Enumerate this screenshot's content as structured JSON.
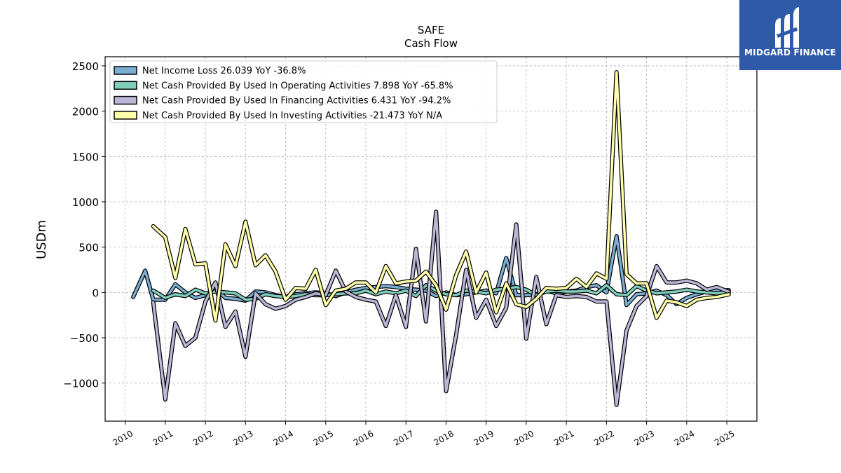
{
  "chart_data": {
    "type": "line",
    "title": "SAFE",
    "subtitle": "Cash Flow",
    "ylabel": "USDm",
    "xlabel": "",
    "xlim": [
      2009.5,
      2025.75
    ],
    "ylim": [
      -1420,
      2600
    ],
    "yticks": [
      -1000,
      -500,
      0,
      500,
      1000,
      1500,
      2000,
      2500
    ],
    "ytick_labels": [
      "−1000",
      "−500",
      "0",
      "500",
      "1000",
      "1500",
      "2000",
      "2500"
    ],
    "xticks": [
      2010,
      2011,
      2012,
      2013,
      2014,
      2015,
      2016,
      2017,
      2018,
      2019,
      2020,
      2021,
      2022,
      2023,
      2024,
      2025
    ],
    "xtick_labels": [
      "2010",
      "2011",
      "2012",
      "2013",
      "2014",
      "2015",
      "2016",
      "2017",
      "2018",
      "2019",
      "2020",
      "2021",
      "2022",
      "2023",
      "2024",
      "2025"
    ],
    "grid": true,
    "legend_position": "top-left",
    "series": [
      {
        "name": "Net Income Loss  26.039 YoY -36.8%",
        "color": "#7aadd2",
        "points": [
          [
            2010.2,
            -50
          ],
          [
            2010.5,
            240
          ],
          [
            2010.7,
            -80
          ],
          [
            2011.0,
            -80
          ],
          [
            2011.25,
            90
          ],
          [
            2011.5,
            0
          ],
          [
            2011.75,
            -60
          ],
          [
            2012.0,
            -30
          ],
          [
            2012.25,
            40
          ],
          [
            2012.5,
            -60
          ],
          [
            2012.75,
            -70
          ],
          [
            2013.0,
            -90
          ],
          [
            2013.25,
            10
          ],
          [
            2013.5,
            0
          ],
          [
            2013.75,
            -30
          ],
          [
            2014.0,
            -50
          ],
          [
            2014.25,
            -20
          ],
          [
            2014.5,
            -10
          ],
          [
            2014.75,
            0
          ],
          [
            2015.0,
            -10
          ],
          [
            2015.25,
            -40
          ],
          [
            2015.5,
            0
          ],
          [
            2015.75,
            30
          ],
          [
            2016.0,
            50
          ],
          [
            2016.25,
            60
          ],
          [
            2016.5,
            70
          ],
          [
            2016.75,
            60
          ],
          [
            2017.0,
            40
          ],
          [
            2017.25,
            30
          ],
          [
            2017.5,
            20
          ],
          [
            2017.75,
            -40
          ],
          [
            2018.0,
            0
          ],
          [
            2018.25,
            -30
          ],
          [
            2018.5,
            -20
          ],
          [
            2018.75,
            0
          ],
          [
            2019.0,
            20
          ],
          [
            2019.25,
            -10
          ],
          [
            2019.5,
            380
          ],
          [
            2019.75,
            -30
          ],
          [
            2020.0,
            -30
          ],
          [
            2020.25,
            -20
          ],
          [
            2020.5,
            20
          ],
          [
            2020.75,
            -10
          ],
          [
            2021.0,
            10
          ],
          [
            2021.25,
            20
          ],
          [
            2021.5,
            60
          ],
          [
            2021.75,
            80
          ],
          [
            2022.0,
            0
          ],
          [
            2022.25,
            620
          ],
          [
            2022.5,
            -140
          ],
          [
            2022.75,
            -20
          ],
          [
            2023.0,
            -10
          ],
          [
            2023.25,
            20
          ],
          [
            2023.5,
            -30
          ],
          [
            2023.75,
            -130
          ],
          [
            2024.0,
            -60
          ],
          [
            2024.25,
            -20
          ],
          [
            2024.5,
            10
          ],
          [
            2024.75,
            20
          ],
          [
            2025.05,
            26
          ]
        ]
      },
      {
        "name": "Net Cash Provided By Used In Operating Activities  7.898 YoY -65.8%",
        "color": "#7fcdbb",
        "points": [
          [
            2010.7,
            20
          ],
          [
            2011.0,
            -60
          ],
          [
            2011.25,
            -20
          ],
          [
            2011.5,
            -40
          ],
          [
            2011.75,
            30
          ],
          [
            2012.0,
            -10
          ],
          [
            2012.25,
            10
          ],
          [
            2012.5,
            0
          ],
          [
            2012.75,
            -10
          ],
          [
            2013.0,
            -80
          ],
          [
            2013.25,
            -70
          ],
          [
            2013.5,
            -20
          ],
          [
            2013.75,
            -40
          ],
          [
            2014.0,
            -50
          ],
          [
            2014.25,
            -40
          ],
          [
            2014.5,
            -20
          ],
          [
            2014.75,
            -30
          ],
          [
            2015.0,
            -30
          ],
          [
            2015.25,
            -20
          ],
          [
            2015.5,
            -10
          ],
          [
            2015.75,
            -10
          ],
          [
            2016.0,
            20
          ],
          [
            2016.25,
            -20
          ],
          [
            2016.5,
            10
          ],
          [
            2016.75,
            -10
          ],
          [
            2017.0,
            20
          ],
          [
            2017.25,
            -40
          ],
          [
            2017.5,
            80
          ],
          [
            2017.75,
            20
          ],
          [
            2018.0,
            -20
          ],
          [
            2018.25,
            -30
          ],
          [
            2018.5,
            20
          ],
          [
            2018.75,
            10
          ],
          [
            2019.0,
            -10
          ],
          [
            2019.25,
            30
          ],
          [
            2019.5,
            40
          ],
          [
            2019.75,
            60
          ],
          [
            2020.0,
            30
          ],
          [
            2020.25,
            -30
          ],
          [
            2020.5,
            10
          ],
          [
            2020.75,
            20
          ],
          [
            2021.0,
            10
          ],
          [
            2021.25,
            10
          ],
          [
            2021.5,
            20
          ],
          [
            2021.75,
            -10
          ],
          [
            2022.0,
            80
          ],
          [
            2022.25,
            -20
          ],
          [
            2022.5,
            -30
          ],
          [
            2022.75,
            70
          ],
          [
            2023.0,
            20
          ],
          [
            2023.25,
            -10
          ],
          [
            2023.5,
            0
          ],
          [
            2023.75,
            10
          ],
          [
            2024.0,
            30
          ],
          [
            2024.25,
            10
          ],
          [
            2024.5,
            0
          ],
          [
            2024.75,
            -10
          ],
          [
            2025.05,
            8
          ]
        ]
      },
      {
        "name": "Net Cash Provided By Used In Financing Activities  6.431 YoY -94.2%",
        "color": "#bcb6d8",
        "points": [
          [
            2010.7,
            -110
          ],
          [
            2011.0,
            -1180
          ],
          [
            2011.25,
            -340
          ],
          [
            2011.5,
            -590
          ],
          [
            2011.75,
            -500
          ],
          [
            2012.0,
            -100
          ],
          [
            2012.25,
            110
          ],
          [
            2012.5,
            -380
          ],
          [
            2012.75,
            -210
          ],
          [
            2013.0,
            -710
          ],
          [
            2013.25,
            -10
          ],
          [
            2013.5,
            -130
          ],
          [
            2013.75,
            -180
          ],
          [
            2014.0,
            -150
          ],
          [
            2014.25,
            -80
          ],
          [
            2014.5,
            -50
          ],
          [
            2014.75,
            -10
          ],
          [
            2015.0,
            -30
          ],
          [
            2015.25,
            240
          ],
          [
            2015.5,
            10
          ],
          [
            2015.75,
            -50
          ],
          [
            2016.0,
            -80
          ],
          [
            2016.25,
            -100
          ],
          [
            2016.5,
            -370
          ],
          [
            2016.75,
            -30
          ],
          [
            2017.0,
            -380
          ],
          [
            2017.25,
            480
          ],
          [
            2017.5,
            -320
          ],
          [
            2017.75,
            890
          ],
          [
            2018.0,
            -1090
          ],
          [
            2018.25,
            -470
          ],
          [
            2018.5,
            250
          ],
          [
            2018.75,
            -280
          ],
          [
            2019.0,
            -80
          ],
          [
            2019.25,
            -370
          ],
          [
            2019.5,
            -170
          ],
          [
            2019.75,
            750
          ],
          [
            2020.0,
            -510
          ],
          [
            2020.25,
            170
          ],
          [
            2020.5,
            -350
          ],
          [
            2020.75,
            -30
          ],
          [
            2021.0,
            -50
          ],
          [
            2021.25,
            -40
          ],
          [
            2021.5,
            -50
          ],
          [
            2021.75,
            -100
          ],
          [
            2022.0,
            -100
          ],
          [
            2022.25,
            -1240
          ],
          [
            2022.5,
            -420
          ],
          [
            2022.75,
            -150
          ],
          [
            2023.0,
            -40
          ],
          [
            2023.25,
            290
          ],
          [
            2023.5,
            110
          ],
          [
            2023.75,
            110
          ],
          [
            2024.0,
            130
          ],
          [
            2024.25,
            100
          ],
          [
            2024.5,
            30
          ],
          [
            2024.75,
            60
          ],
          [
            2025.05,
            6
          ]
        ]
      },
      {
        "name": "Net Cash Provided By Used In Investing Activities  -21.473 YoY N/A",
        "color": "#ffffaa",
        "points": [
          [
            2010.7,
            730
          ],
          [
            2011.0,
            610
          ],
          [
            2011.25,
            160
          ],
          [
            2011.5,
            700
          ],
          [
            2011.75,
            310
          ],
          [
            2012.0,
            320
          ],
          [
            2012.25,
            -310
          ],
          [
            2012.5,
            530
          ],
          [
            2012.75,
            290
          ],
          [
            2013.0,
            780
          ],
          [
            2013.25,
            300
          ],
          [
            2013.5,
            410
          ],
          [
            2013.75,
            230
          ],
          [
            2014.0,
            -80
          ],
          [
            2014.25,
            50
          ],
          [
            2014.5,
            40
          ],
          [
            2014.75,
            250
          ],
          [
            2015.0,
            -140
          ],
          [
            2015.25,
            20
          ],
          [
            2015.5,
            40
          ],
          [
            2015.75,
            110
          ],
          [
            2016.0,
            110
          ],
          [
            2016.25,
            0
          ],
          [
            2016.5,
            290
          ],
          [
            2016.75,
            100
          ],
          [
            2017.0,
            120
          ],
          [
            2017.25,
            130
          ],
          [
            2017.5,
            230
          ],
          [
            2017.75,
            80
          ],
          [
            2018.0,
            -190
          ],
          [
            2018.25,
            190
          ],
          [
            2018.5,
            450
          ],
          [
            2018.75,
            0
          ],
          [
            2019.0,
            220
          ],
          [
            2019.25,
            -220
          ],
          [
            2019.5,
            100
          ],
          [
            2019.75,
            -130
          ],
          [
            2020.0,
            -160
          ],
          [
            2020.25,
            -70
          ],
          [
            2020.5,
            50
          ],
          [
            2020.75,
            40
          ],
          [
            2021.0,
            50
          ],
          [
            2021.25,
            150
          ],
          [
            2021.5,
            60
          ],
          [
            2021.75,
            210
          ],
          [
            2022.0,
            150
          ],
          [
            2022.25,
            2430
          ],
          [
            2022.5,
            200
          ],
          [
            2022.75,
            100
          ],
          [
            2023.0,
            100
          ],
          [
            2023.25,
            -280
          ],
          [
            2023.5,
            -90
          ],
          [
            2023.75,
            -110
          ],
          [
            2024.0,
            -150
          ],
          [
            2024.25,
            -80
          ],
          [
            2024.5,
            -60
          ],
          [
            2024.75,
            -50
          ],
          [
            2025.05,
            -21
          ]
        ]
      }
    ]
  },
  "logo": {
    "text": "MIDGARD FINANCE",
    "color": "#2f5aa8"
  }
}
